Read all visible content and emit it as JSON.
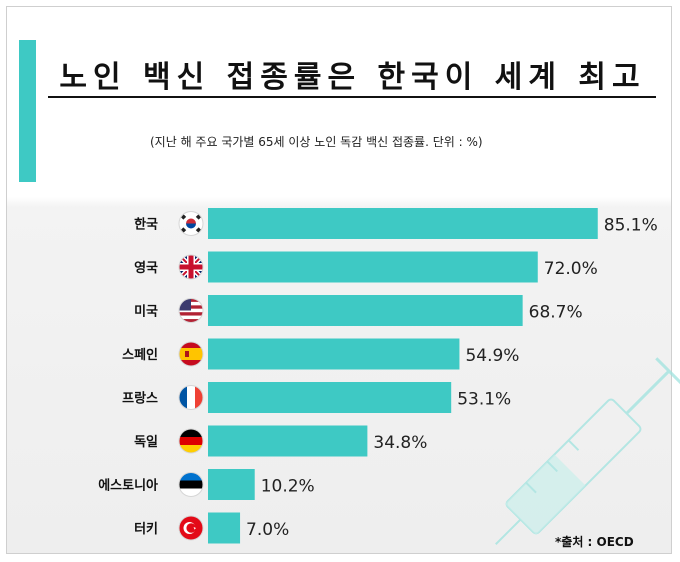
{
  "header": {
    "title": "노인 백신 접종률은 한국이 세계 최고",
    "subtitle": "(지난 해 주요 국가별 65세 이상 노인 독감 백신 접종률. 단위 :  %)"
  },
  "source": "*출처 :  OECD",
  "colors": {
    "accent": "#3ec9c4",
    "bar": "#3ec9c4",
    "text": "#111111"
  },
  "chart_data": {
    "type": "bar",
    "orientation": "horizontal",
    "categories": [
      "한국",
      "영국",
      "미국",
      "스페인",
      "프랑스",
      "독일",
      "에스토니아",
      "터키"
    ],
    "flag_icons": [
      "south-korea-flag-icon",
      "uk-flag-icon",
      "usa-flag-icon",
      "spain-flag-icon",
      "france-flag-icon",
      "germany-flag-icon",
      "estonia-flag-icon",
      "turkey-flag-icon"
    ],
    "values": [
      85.1,
      72.0,
      68.7,
      54.9,
      53.1,
      34.8,
      10.2,
      7.0
    ],
    "value_labels": [
      "85.1%",
      "72.0%",
      "68.7%",
      "54.9%",
      "53.1%",
      "34.8%",
      "10.2%",
      "7.0%"
    ],
    "title": "노인 백신 접종률은 한국이 세계 최고",
    "xlabel": "",
    "ylabel": "",
    "xlim": [
      0,
      100
    ],
    "grid": false,
    "legend": "none"
  }
}
